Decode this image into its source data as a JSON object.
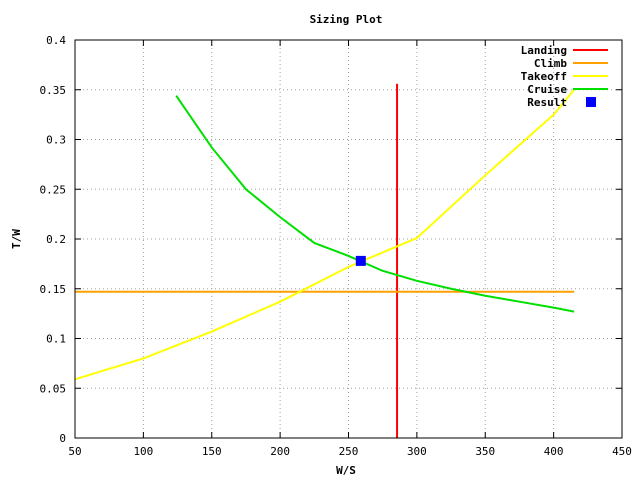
{
  "chart_data": {
    "type": "line",
    "title": "Sizing Plot",
    "xlabel": "W/S",
    "ylabel": "T/W",
    "xlim": [
      50,
      450
    ],
    "ylim": [
      0,
      0.4
    ],
    "xticks": [
      50,
      100,
      150,
      200,
      250,
      300,
      350,
      400,
      450
    ],
    "yticks": [
      0,
      0.05,
      0.1,
      0.15,
      0.2,
      0.25,
      0.3,
      0.35,
      0.4
    ],
    "grid": true,
    "legend_position": "top-right",
    "series": [
      {
        "name": "Landing",
        "color": "#ff0000",
        "kind": "line",
        "x": [
          285.5,
          285.5
        ],
        "y": [
          0,
          0.356
        ]
      },
      {
        "name": "Climb",
        "color": "#ffa000",
        "kind": "line",
        "x": [
          50,
          415
        ],
        "y": [
          0.147,
          0.147
        ]
      },
      {
        "name": "Takeoff",
        "color": "#ffff00",
        "kind": "line",
        "x": [
          50,
          100,
          150,
          200,
          250,
          300,
          350,
          400,
          415
        ],
        "y": [
          0.059,
          0.08,
          0.107,
          0.137,
          0.172,
          0.201,
          0.264,
          0.325,
          0.35
        ]
      },
      {
        "name": "Cruise",
        "color": "#00e000",
        "kind": "line",
        "x": [
          124,
          150,
          175,
          200,
          225,
          250,
          275,
          300,
          325,
          350,
          375,
          400,
          415
        ],
        "y": [
          0.344,
          0.292,
          0.25,
          0.222,
          0.196,
          0.183,
          0.168,
          0.158,
          0.15,
          0.143,
          0.137,
          0.131,
          0.127
        ]
      },
      {
        "name": "Result",
        "color": "#0000ff",
        "kind": "point",
        "x": [
          259
        ],
        "y": [
          0.178
        ]
      }
    ]
  }
}
